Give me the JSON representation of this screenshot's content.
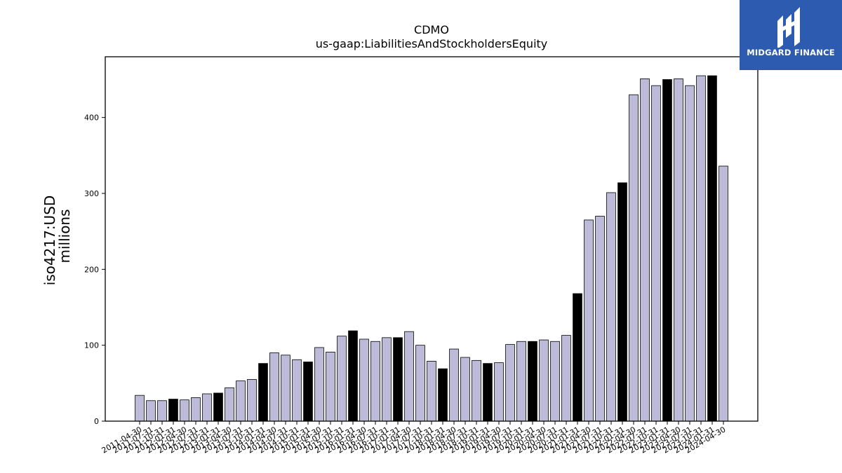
{
  "colors": {
    "bar_default": "#bcbad8",
    "bar_highlight": "#000000",
    "axis": "#000000",
    "logo_bg": "#2d5bb0"
  },
  "brand": {
    "name": "MIDGARD FINANCE",
    "logo_icon": "midgard-mark-icon"
  },
  "chart_data": {
    "type": "bar",
    "title": "CDMO",
    "subtitle": "us-gaap:LiabilitiesAndStockholdersEquity",
    "ylabel": "iso4217:USD",
    "ylabel_sub": "millions",
    "ylim": [
      0,
      480
    ],
    "yticks": [
      0,
      100,
      200,
      300,
      400
    ],
    "categories": [
      "2011-04-30",
      "2011-07-31",
      "2011-10-31",
      "2012-01-31",
      "2012-04-30",
      "2012-07-31",
      "2012-10-31",
      "2013-01-31",
      "2013-04-30",
      "2013-07-31",
      "2013-10-31",
      "2014-01-31",
      "2014-04-30",
      "2014-07-31",
      "2014-10-31",
      "2015-01-31",
      "2015-04-30",
      "2015-07-31",
      "2015-10-31",
      "2016-01-31",
      "2016-04-30",
      "2016-07-31",
      "2016-10-31",
      "2017-01-31",
      "2017-04-30",
      "2017-07-31",
      "2017-10-31",
      "2018-01-31",
      "2018-04-30",
      "2018-07-31",
      "2018-10-31",
      "2019-01-31",
      "2019-04-30",
      "2019-07-31",
      "2019-10-31",
      "2020-01-31",
      "2020-04-30",
      "2020-07-31",
      "2020-10-31",
      "2021-01-31",
      "2021-04-30",
      "2021-07-31",
      "2021-10-31",
      "2022-01-31",
      "2022-04-30",
      "2022-07-31",
      "2022-10-31",
      "2023-01-31",
      "2023-04-30",
      "2023-07-31",
      "2023-10-31",
      "2024-01-31",
      "2024-04-30"
    ],
    "values": [
      34,
      27,
      27,
      29,
      28,
      31,
      36,
      37,
      44,
      53,
      55,
      76,
      90,
      87,
      81,
      78,
      97,
      91,
      112,
      119,
      108,
      105,
      110,
      110,
      118,
      100,
      79,
      69,
      95,
      84,
      80,
      76,
      77,
      101,
      105,
      105,
      107,
      105,
      113,
      168,
      265,
      270,
      301,
      314,
      430,
      451,
      442,
      450,
      451,
      442,
      455,
      455,
      336
    ],
    "highlighted": [
      3,
      7,
      11,
      15,
      19,
      23,
      27,
      31,
      35,
      39,
      43,
      47,
      51
    ],
    "grid": false,
    "legend": "none"
  }
}
